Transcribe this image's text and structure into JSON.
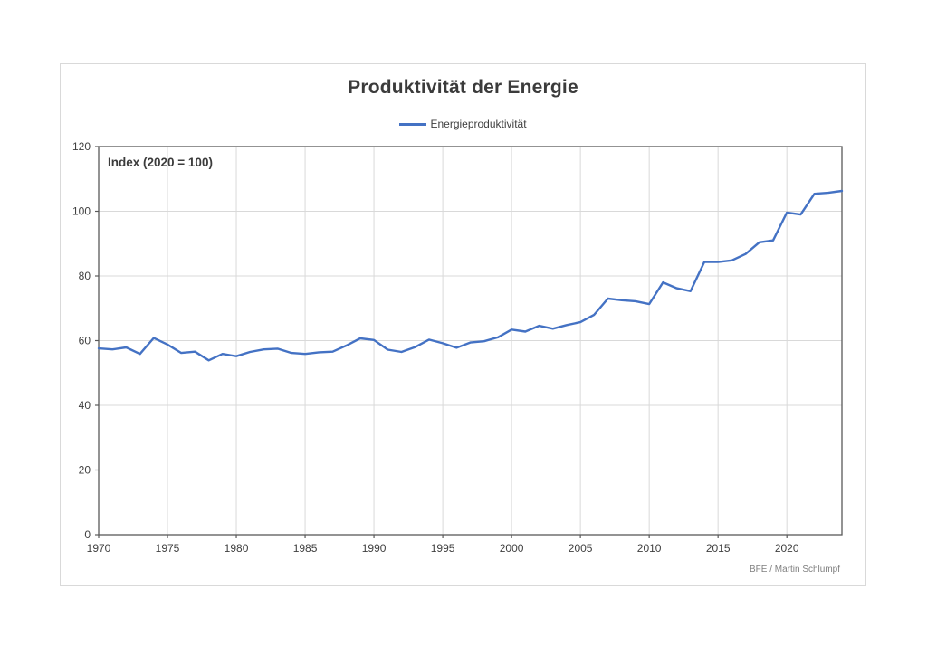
{
  "chart": {
    "title": "Produktivität der Energie",
    "legend_label": "Energieproduktivität",
    "annotation": "Index (2020 = 100)",
    "attribution": "BFE / Martin Schlumpf"
  },
  "chart_data": {
    "type": "line",
    "title": "Produktivität der Energie",
    "annotation": "Index (2020 = 100)",
    "xlabel": "",
    "ylabel": "",
    "xlim": [
      1970,
      2024
    ],
    "ylim": [
      0,
      120
    ],
    "x_ticks": [
      1970,
      1975,
      1980,
      1985,
      1990,
      1995,
      2000,
      2005,
      2010,
      2015,
      2020
    ],
    "y_ticks": [
      0,
      20,
      40,
      60,
      80,
      100,
      120
    ],
    "grid": true,
    "legend_position": "top-center",
    "series": [
      {
        "name": "Energieproduktivität",
        "x": [
          1970,
          1971,
          1972,
          1973,
          1974,
          1975,
          1976,
          1977,
          1978,
          1979,
          1980,
          1981,
          1982,
          1983,
          1984,
          1985,
          1986,
          1987,
          1988,
          1989,
          1990,
          1991,
          1992,
          1993,
          1994,
          1995,
          1996,
          1997,
          1998,
          1999,
          2000,
          2001,
          2002,
          2003,
          2004,
          2005,
          2006,
          2007,
          2008,
          2009,
          2010,
          2011,
          2012,
          2013,
          2014,
          2015,
          2016,
          2017,
          2018,
          2019,
          2020,
          2021,
          2022,
          2023,
          2024
        ],
        "values": [
          57.6,
          57.3,
          57.9,
          55.9,
          60.8,
          58.8,
          56.2,
          56.6,
          53.9,
          55.9,
          55.2,
          56.5,
          57.3,
          57.5,
          56.2,
          55.9,
          56.4,
          56.6,
          58.5,
          60.7,
          60.2,
          57.2,
          56.5,
          58.0,
          60.3,
          59.2,
          57.8,
          59.4,
          59.8,
          61.0,
          63.4,
          62.8,
          64.6,
          63.7,
          64.8,
          65.7,
          68.0,
          73.0,
          72.5,
          72.2,
          71.3,
          78.0,
          76.2,
          75.3,
          84.3,
          84.3,
          84.8,
          86.8,
          90.4,
          91.0,
          99.6,
          99.0,
          105.4,
          105.7,
          106.3
        ]
      }
    ],
    "colors": {
      "line": "#4472C4",
      "grid": "#d9d9d9",
      "axis": "#595959",
      "tick_label": "#404040",
      "figure_border": "#d9d9d9"
    }
  }
}
